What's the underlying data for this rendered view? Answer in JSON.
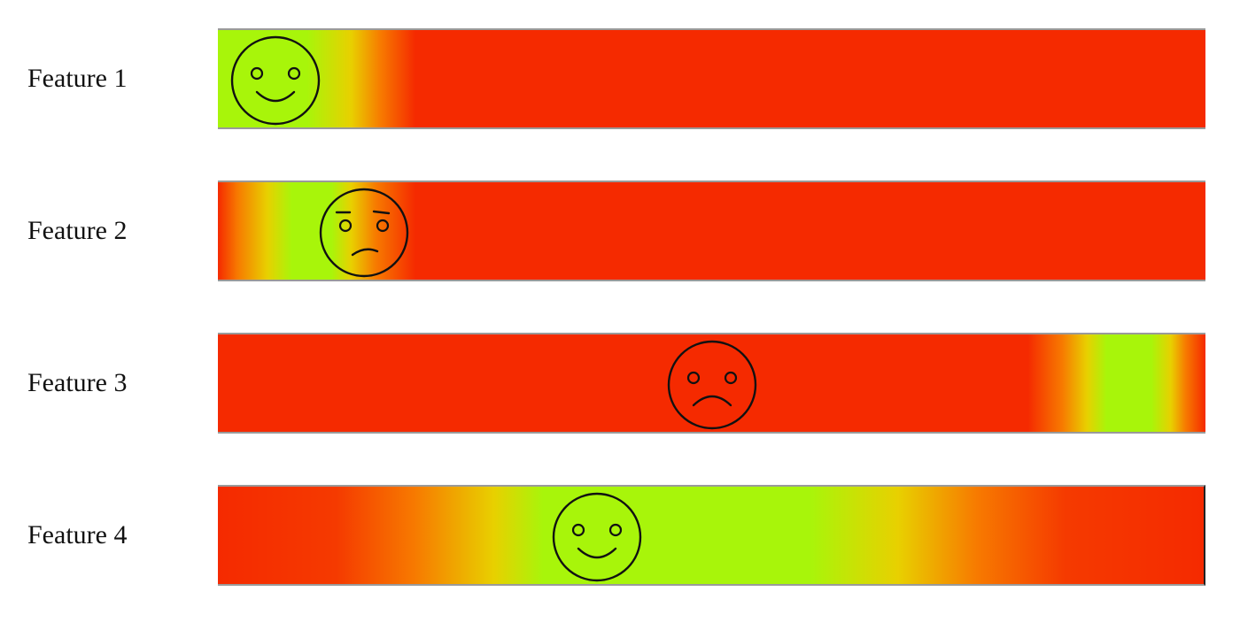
{
  "colors": {
    "good": "#a8f50a",
    "mid": "#f77a00",
    "bad": "#f52a00"
  },
  "features": [
    {
      "label": "Feature 1",
      "mood": "happy",
      "face_icon": "smiley-face-icon",
      "indicator_position": 0.058,
      "profile": [
        [
          0.0,
          "#a8f50a"
        ],
        [
          0.09,
          "#a8f50a"
        ],
        [
          0.135,
          "#e8d000"
        ],
        [
          0.165,
          "#f77a00"
        ],
        [
          0.2,
          "#f52a00"
        ],
        [
          1.0,
          "#f52a00"
        ]
      ]
    },
    {
      "label": "Feature 2",
      "mood": "worried",
      "face_icon": "worried-face-icon",
      "indicator_position": 0.148,
      "profile": [
        [
          0.0,
          "#f52a00"
        ],
        [
          0.02,
          "#f77a00"
        ],
        [
          0.05,
          "#e8d000"
        ],
        [
          0.075,
          "#a8f50a"
        ],
        [
          0.115,
          "#a8f50a"
        ],
        [
          0.135,
          "#e8d000"
        ],
        [
          0.16,
          "#f77a00"
        ],
        [
          0.2,
          "#f52a00"
        ],
        [
          1.0,
          "#f52a00"
        ]
      ]
    },
    {
      "label": "Feature 3",
      "mood": "sad",
      "face_icon": "sad-face-icon",
      "indicator_position": 0.5,
      "profile": [
        [
          0.0,
          "#f52a00"
        ],
        [
          0.82,
          "#f52a00"
        ],
        [
          0.855,
          "#f77a00"
        ],
        [
          0.88,
          "#e8d000"
        ],
        [
          0.9,
          "#a8f50a"
        ],
        [
          0.945,
          "#a8f50a"
        ],
        [
          0.965,
          "#e8d000"
        ],
        [
          0.98,
          "#f77a00"
        ],
        [
          1.0,
          "#f52a00"
        ]
      ]
    },
    {
      "label": "Feature 4",
      "mood": "happy",
      "face_icon": "smiley-face-icon",
      "indicator_position": 0.384,
      "profile": [
        [
          0.0,
          "#f52a00"
        ],
        [
          0.12,
          "#f53a00"
        ],
        [
          0.2,
          "#f77a00"
        ],
        [
          0.28,
          "#e8d000"
        ],
        [
          0.33,
          "#a8f50a"
        ],
        [
          0.6,
          "#a8f50a"
        ],
        [
          0.69,
          "#e8d000"
        ],
        [
          0.77,
          "#f77a00"
        ],
        [
          0.86,
          "#f53a00"
        ],
        [
          1.0,
          "#f52a00"
        ]
      ]
    }
  ]
}
